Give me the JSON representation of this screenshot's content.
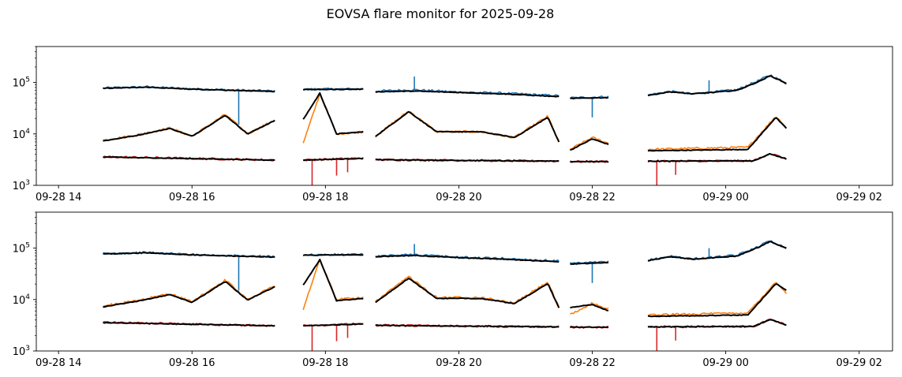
{
  "figure": {
    "title": "EOVSA flare monitor for 2025-09-28"
  },
  "chart_data": [
    {
      "type": "line",
      "panel": "top",
      "title": "",
      "xlabel": "",
      "ylabel": "",
      "yscale": "log",
      "ylim": [
        1000,
        500000
      ],
      "xlim": [
        "2025-09-28 13:40",
        "2025-09-29 02:30"
      ],
      "x_ticks": [
        "09-28 14",
        "09-28 16",
        "09-28 18",
        "09-28 20",
        "09-28 22",
        "09-29 00",
        "09-29 02"
      ],
      "y_ticks": [
        {
          "value": 1000,
          "base": "10",
          "exp": "3"
        },
        {
          "value": 10000,
          "base": "10",
          "exp": "4"
        },
        {
          "value": 100000,
          "base": "10",
          "exp": "5"
        }
      ],
      "grid": false,
      "legend": "none",
      "segments": [
        [
          "2025-09-28 14:40",
          "2025-09-28 17:15"
        ],
        [
          "2025-09-28 17:40",
          "2025-09-28 18:35"
        ],
        [
          "2025-09-28 18:45",
          "2025-09-28 21:30"
        ],
        [
          "2025-09-28 21:40",
          "2025-09-28 22:15"
        ],
        [
          "2025-09-28 22:50",
          "2025-09-29 00:55"
        ]
      ],
      "series": [
        {
          "color": "#1f77b4",
          "x": [
            "2025-09-28 14:40",
            "2025-09-28 15:20",
            "2025-09-28 16:00",
            "2025-09-28 16:40",
            "2025-09-28 17:15",
            "2025-09-28 17:40",
            "2025-09-28 18:35",
            "2025-09-28 18:45",
            "2025-09-28 19:20",
            "2025-09-28 20:00",
            "2025-09-28 20:40",
            "2025-09-28 21:30",
            "2025-09-28 21:40",
            "2025-09-28 22:15",
            "2025-09-28 22:50",
            "2025-09-28 23:10",
            "2025-09-28 23:30",
            "2025-09-29 00:10",
            "2025-09-29 00:30",
            "2025-09-29 00:40",
            "2025-09-29 00:55"
          ],
          "values": [
            78000,
            82000,
            75000,
            71000,
            68000,
            74000,
            75000,
            68000,
            72000,
            65000,
            62000,
            55000,
            50000,
            53000,
            57000,
            67000,
            60000,
            72000,
            110000,
            140000,
            95000
          ],
          "spikes": [
            {
              "x": "2025-09-28 16:42",
              "value": 15000
            },
            {
              "x": "2025-09-28 22:00",
              "value": 21000
            },
            {
              "x": "2025-09-28 19:20",
              "value": 130000
            },
            {
              "x": "2025-09-28 23:45",
              "value": 110000
            }
          ]
        },
        {
          "color": "#ff7f0e",
          "x": [
            "2025-09-28 14:40",
            "2025-09-28 15:10",
            "2025-09-28 15:40",
            "2025-09-28 16:00",
            "2025-09-28 16:30",
            "2025-09-28 16:50",
            "2025-09-28 17:15",
            "2025-09-28 17:40",
            "2025-09-28 17:55",
            "2025-09-28 18:10",
            "2025-09-28 18:35",
            "2025-09-28 18:45",
            "2025-09-28 19:15",
            "2025-09-28 19:40",
            "2025-09-28 20:20",
            "2025-09-28 20:50",
            "2025-09-28 21:20",
            "2025-09-28 21:30",
            "2025-09-28 21:40",
            "2025-09-28 22:00",
            "2025-09-28 22:15",
            "2025-09-28 22:50",
            "2025-09-29 00:20",
            "2025-09-29 00:45",
            "2025-09-29 00:55"
          ],
          "values": [
            7500,
            9500,
            13000,
            9000,
            24000,
            10000,
            19000,
            6500,
            60000,
            10000,
            11000,
            9000,
            28000,
            11000,
            11000,
            8500,
            22000,
            7000,
            5000,
            8500,
            6500,
            5000,
            5500,
            22000,
            13000
          ]
        },
        {
          "color": "#000000",
          "x": [
            "2025-09-28 14:40",
            "2025-09-28 15:10",
            "2025-09-28 15:40",
            "2025-09-28 16:00",
            "2025-09-28 16:30",
            "2025-09-28 16:50",
            "2025-09-28 17:15",
            "2025-09-28 17:40",
            "2025-09-28 17:55",
            "2025-09-28 18:10",
            "2025-09-28 18:35",
            "2025-09-28 18:45",
            "2025-09-28 19:15",
            "2025-09-28 19:40",
            "2025-09-28 20:20",
            "2025-09-28 20:50",
            "2025-09-28 21:20",
            "2025-09-28 21:30",
            "2025-09-28 21:40",
            "2025-09-28 22:00",
            "2025-09-28 22:15",
            "2025-09-28 22:50",
            "2025-09-29 00:20",
            "2025-09-29 00:45",
            "2025-09-29 00:55"
          ],
          "values": [
            7300,
            9300,
            12800,
            9000,
            23000,
            10000,
            18500,
            19000,
            62000,
            10000,
            11000,
            9000,
            27000,
            11000,
            11000,
            8500,
            21000,
            7000,
            4800,
            8000,
            6200,
            4700,
            5000,
            21000,
            12500
          ]
        },
        {
          "color": "#d62728",
          "x": [
            "2025-09-28 14:40",
            "2025-09-28 17:15",
            "2025-09-28 17:40",
            "2025-09-28 18:35",
            "2025-09-28 18:45",
            "2025-09-28 21:30",
            "2025-09-28 21:40",
            "2025-09-28 22:15",
            "2025-09-28 22:50",
            "2025-09-29 00:25",
            "2025-09-29 00:40",
            "2025-09-29 00:55"
          ],
          "values": [
            3600,
            3100,
            3100,
            3400,
            3150,
            2950,
            2900,
            2900,
            2950,
            3000,
            4200,
            3200
          ],
          "spikes": [
            {
              "x": "2025-09-28 17:48",
              "value": 1000
            },
            {
              "x": "2025-09-28 18:10",
              "value": 1550
            },
            {
              "x": "2025-09-28 18:20",
              "value": 1800
            },
            {
              "x": "2025-09-28 22:58",
              "value": 1000
            },
            {
              "x": "2025-09-28 23:15",
              "value": 1600
            }
          ]
        },
        {
          "color": "#000000",
          "x": [
            "2025-09-28 14:40",
            "2025-09-28 17:15",
            "2025-09-28 17:40",
            "2025-09-28 18:35",
            "2025-09-28 18:45",
            "2025-09-28 21:30",
            "2025-09-28 21:40",
            "2025-09-28 22:15",
            "2025-09-28 22:50",
            "2025-09-29 00:25",
            "2025-09-29 00:40",
            "2025-09-29 00:55"
          ],
          "values": [
            3550,
            3100,
            3100,
            3350,
            3150,
            2950,
            2900,
            2900,
            2950,
            3000,
            4100,
            3200
          ]
        },
        {
          "color": "#000000",
          "x": [
            "2025-09-28 14:40",
            "2025-09-28 15:20",
            "2025-09-28 16:00",
            "2025-09-28 16:40",
            "2025-09-28 17:15",
            "2025-09-28 17:40",
            "2025-09-28 18:35",
            "2025-09-28 18:45",
            "2025-09-28 19:20",
            "2025-09-28 20:00",
            "2025-09-28 20:40",
            "2025-09-28 21:30",
            "2025-09-28 21:40",
            "2025-09-28 22:15",
            "2025-09-28 22:50",
            "2025-09-28 23:10",
            "2025-09-28 23:30",
            "2025-09-29 00:10",
            "2025-09-29 00:30",
            "2025-09-29 00:40",
            "2025-09-29 00:55"
          ],
          "values": [
            77000,
            81000,
            74000,
            70000,
            67000,
            73000,
            74000,
            66000,
            68000,
            64000,
            60000,
            53000,
            49000,
            51000,
            56000,
            66000,
            60000,
            70000,
            105000,
            135000,
            95000
          ]
        }
      ]
    },
    {
      "type": "line",
      "panel": "bottom",
      "title": "",
      "xlabel": "",
      "ylabel": "",
      "yscale": "log",
      "ylim": [
        1000,
        500000
      ],
      "xlim": [
        "2025-09-28 13:40",
        "2025-09-29 02:30"
      ],
      "x_ticks": [
        "09-28 14",
        "09-28 16",
        "09-28 18",
        "09-28 20",
        "09-28 22",
        "09-29 00",
        "09-29 02"
      ],
      "y_ticks": [
        {
          "value": 1000,
          "base": "10",
          "exp": "3"
        },
        {
          "value": 10000,
          "base": "10",
          "exp": "4"
        },
        {
          "value": 100000,
          "base": "10",
          "exp": "5"
        }
      ],
      "grid": false,
      "legend": "none",
      "segments": [
        [
          "2025-09-28 14:40",
          "2025-09-28 17:15"
        ],
        [
          "2025-09-28 17:40",
          "2025-09-28 18:35"
        ],
        [
          "2025-09-28 18:45",
          "2025-09-28 21:30"
        ],
        [
          "2025-09-28 21:40",
          "2025-09-28 22:15"
        ],
        [
          "2025-09-28 22:50",
          "2025-09-29 00:55"
        ]
      ],
      "series": [
        {
          "color": "#1f77b4",
          "x": [
            "2025-09-28 14:40",
            "2025-09-28 15:20",
            "2025-09-28 16:00",
            "2025-09-28 16:40",
            "2025-09-28 17:15",
            "2025-09-28 17:40",
            "2025-09-28 18:35",
            "2025-09-28 18:45",
            "2025-09-28 19:20",
            "2025-09-28 20:00",
            "2025-09-28 20:40",
            "2025-09-28 21:30",
            "2025-09-28 21:40",
            "2025-09-28 22:15",
            "2025-09-28 22:50",
            "2025-09-28 23:10",
            "2025-09-28 23:30",
            "2025-09-29 00:10",
            "2025-09-29 00:30",
            "2025-09-29 00:40",
            "2025-09-29 00:55"
          ],
          "values": [
            78000,
            82000,
            75000,
            71000,
            68000,
            74000,
            75000,
            70000,
            75000,
            66000,
            63000,
            56000,
            50000,
            54000,
            58000,
            70000,
            62000,
            72000,
            110000,
            140000,
            100000
          ],
          "spikes": [
            {
              "x": "2025-09-28 16:42",
              "value": 15000
            },
            {
              "x": "2025-09-28 22:00",
              "value": 21000
            },
            {
              "x": "2025-09-28 19:20",
              "value": 120000
            },
            {
              "x": "2025-09-28 23:45",
              "value": 100000
            }
          ]
        },
        {
          "color": "#ff7f0e",
          "x": [
            "2025-09-28 14:40",
            "2025-09-28 15:10",
            "2025-09-28 15:40",
            "2025-09-28 16:00",
            "2025-09-28 16:30",
            "2025-09-28 16:50",
            "2025-09-28 17:15",
            "2025-09-28 17:40",
            "2025-09-28 17:55",
            "2025-09-28 18:10",
            "2025-09-28 18:35",
            "2025-09-28 18:45",
            "2025-09-28 19:15",
            "2025-09-28 19:40",
            "2025-09-28 20:20",
            "2025-09-28 20:50",
            "2025-09-28 21:20",
            "2025-09-28 21:30",
            "2025-09-28 21:40",
            "2025-09-28 22:00",
            "2025-09-28 22:15",
            "2025-09-28 22:50",
            "2025-09-29 00:20",
            "2025-09-29 00:45",
            "2025-09-29 00:55"
          ],
          "values": [
            7500,
            9500,
            13000,
            9000,
            24000,
            10000,
            19000,
            6500,
            60000,
            10000,
            11000,
            9000,
            28000,
            11000,
            11000,
            8500,
            22000,
            7000,
            5000,
            8500,
            6500,
            5000,
            5500,
            22000,
            13000
          ]
        },
        {
          "color": "#000000",
          "x": [
            "2025-09-28 14:40",
            "2025-09-28 15:10",
            "2025-09-28 15:40",
            "2025-09-28 16:00",
            "2025-09-28 16:30",
            "2025-09-28 16:50",
            "2025-09-28 17:15",
            "2025-09-28 17:40",
            "2025-09-28 17:55",
            "2025-09-28 18:10",
            "2025-09-28 18:35",
            "2025-09-28 18:45",
            "2025-09-28 19:15",
            "2025-09-28 19:40",
            "2025-09-28 20:20",
            "2025-09-28 20:50",
            "2025-09-28 21:20",
            "2025-09-28 21:30",
            "2025-09-28 21:40",
            "2025-09-28 22:00",
            "2025-09-28 22:15",
            "2025-09-28 22:50",
            "2025-09-29 00:20",
            "2025-09-29 00:45",
            "2025-09-29 00:55"
          ],
          "values": [
            7200,
            9200,
            12500,
            8800,
            22500,
            9800,
            18000,
            19000,
            60000,
            9500,
            10500,
            8800,
            26000,
            10500,
            10500,
            8300,
            20500,
            6800,
            7000,
            8000,
            6000,
            4700,
            5000,
            20500,
            15000
          ]
        },
        {
          "color": "#d62728",
          "x": [
            "2025-09-28 14:40",
            "2025-09-28 17:15",
            "2025-09-28 17:40",
            "2025-09-28 18:35",
            "2025-09-28 18:45",
            "2025-09-28 21:30",
            "2025-09-28 21:40",
            "2025-09-28 22:15",
            "2025-09-28 22:50",
            "2025-09-29 00:25",
            "2025-09-29 00:40",
            "2025-09-29 00:55"
          ],
          "values": [
            3600,
            3100,
            3100,
            3400,
            3150,
            2950,
            2900,
            2900,
            2950,
            3000,
            4200,
            3200
          ],
          "spikes": [
            {
              "x": "2025-09-28 17:48",
              "value": 1000
            },
            {
              "x": "2025-09-28 18:10",
              "value": 1550
            },
            {
              "x": "2025-09-28 18:20",
              "value": 1800
            },
            {
              "x": "2025-09-28 22:58",
              "value": 1000
            },
            {
              "x": "2025-09-28 23:15",
              "value": 1600
            }
          ]
        },
        {
          "color": "#000000",
          "x": [
            "2025-09-28 14:40",
            "2025-09-28 17:15",
            "2025-09-28 17:40",
            "2025-09-28 18:35",
            "2025-09-28 18:45",
            "2025-09-28 21:30",
            "2025-09-28 21:40",
            "2025-09-28 22:15",
            "2025-09-28 22:50",
            "2025-09-29 00:25",
            "2025-09-29 00:40",
            "2025-09-29 00:55"
          ],
          "values": [
            3550,
            3100,
            3100,
            3350,
            3150,
            2950,
            2900,
            2900,
            2950,
            3000,
            4100,
            3200
          ]
        },
        {
          "color": "#000000",
          "x": [
            "2025-09-28 14:40",
            "2025-09-28 15:20",
            "2025-09-28 16:00",
            "2025-09-28 16:40",
            "2025-09-28 17:15",
            "2025-09-28 17:40",
            "2025-09-28 18:35",
            "2025-09-28 18:45",
            "2025-09-28 19:20",
            "2025-09-28 20:00",
            "2025-09-28 20:40",
            "2025-09-28 21:30",
            "2025-09-28 21:40",
            "2025-09-28 22:15",
            "2025-09-28 22:50",
            "2025-09-28 23:10",
            "2025-09-28 23:30",
            "2025-09-29 00:10",
            "2025-09-29 00:30",
            "2025-09-29 00:40",
            "2025-09-29 00:55"
          ],
          "values": [
            77000,
            81000,
            74000,
            70000,
            67000,
            73000,
            74000,
            68000,
            72000,
            65000,
            61000,
            54000,
            49000,
            52000,
            57000,
            68000,
            61000,
            70000,
            105000,
            135000,
            98000
          ]
        }
      ]
    }
  ]
}
